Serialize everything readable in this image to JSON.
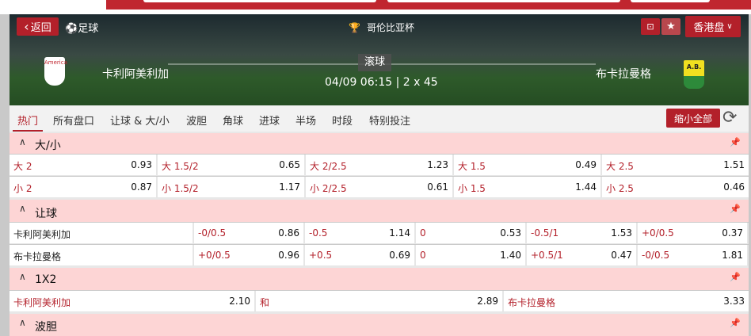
{
  "header": {
    "back": "返回",
    "sport": "足球",
    "league": "哥伦比亚杯",
    "odds_format": "香港盘",
    "home": "卡利阿美利加",
    "away": "布卡拉曼格",
    "status": "滚球",
    "datetime": "04/09 06:15 | 2 x 45",
    "home_logo_text": "America",
    "away_logo_text": "A.B."
  },
  "tabs": [
    "热门",
    "所有盘口",
    "让球 & 大/小",
    "波胆",
    "角球",
    "进球",
    "半场",
    "时段",
    "特别投注"
  ],
  "collapse_all": "缩小全部",
  "ou": {
    "title": "大/小",
    "rows": [
      [
        [
          "大 2",
          "0.93"
        ],
        [
          "大 1.5/2",
          "0.65"
        ],
        [
          "大 2/2.5",
          "1.23"
        ],
        [
          "大 1.5",
          "0.49"
        ],
        [
          "大 2.5",
          "1.51"
        ]
      ],
      [
        [
          "小 2",
          "0.87"
        ],
        [
          "小 1.5/2",
          "1.17"
        ],
        [
          "小 2/2.5",
          "0.61"
        ],
        [
          "小 1.5",
          "1.44"
        ],
        [
          "小 2.5",
          "0.46"
        ]
      ]
    ]
  },
  "hdp": {
    "title": "让球",
    "rows": [
      {
        "team": "卡利阿美利加",
        "cells": [
          [
            "-0/0.5",
            "0.86"
          ],
          [
            "-0.5",
            "1.14"
          ],
          [
            "0",
            "0.53"
          ],
          [
            "-0.5/1",
            "1.53"
          ],
          [
            "+0/0.5",
            "0.37"
          ]
        ]
      },
      {
        "team": "布卡拉曼格",
        "cells": [
          [
            "+0/0.5",
            "0.96"
          ],
          [
            "+0.5",
            "0.69"
          ],
          [
            "0",
            "1.40"
          ],
          [
            "+0.5/1",
            "0.47"
          ],
          [
            "-0/0.5",
            "1.81"
          ]
        ]
      }
    ]
  },
  "x12": {
    "title": "1X2",
    "cells": [
      [
        "卡利阿美利加",
        "2.10"
      ],
      [
        "和",
        "2.89"
      ],
      [
        "布卡拉曼格",
        "3.33"
      ]
    ]
  },
  "cs": {
    "title": "波胆"
  }
}
